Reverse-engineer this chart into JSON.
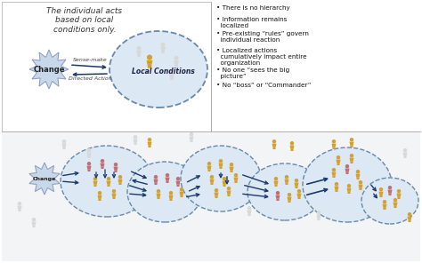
{
  "bg_color": "#f0f0ec",
  "title_text": "The individual acts\nbased on local\nconditions only.",
  "local_conditions_label": "Local Conditions",
  "change_label": "Change",
  "sense_make_label": "Sense-make",
  "directed_action_label": "Directed Action",
  "bullet_points": [
    "• There is no hierarchy",
    "• Information remains\n  localized",
    "• Pre-existing “rules” govern\n  individual reaction",
    "• Localized actions\n  cumulatively impact entire\n  organization",
    "• No one “sees the big\n  picture”",
    "• No “boss” or “Commander”"
  ],
  "circle_fill": "#dde8f5",
  "circle_edge": "#6688aa",
  "arrow_color": "#1a3a6a",
  "figure_gold": "#d4a030",
  "figure_red": "#c07070",
  "figure_white": "#d8d8d8",
  "starburst_fill": "#c8d8ea",
  "starburst_edge": "#8899bb"
}
